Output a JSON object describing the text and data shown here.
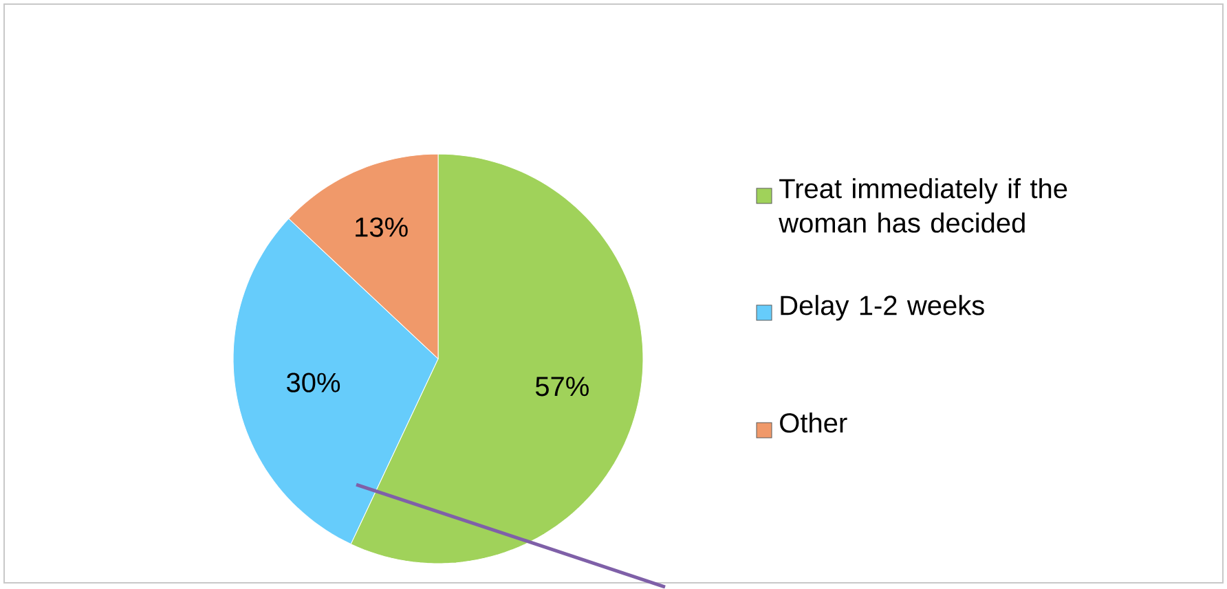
{
  "chart_data": {
    "type": "pie",
    "categories": [
      "Treat immediately if the woman has decided",
      "Delay 1-2 weeks",
      "Other"
    ],
    "values": [
      57,
      30,
      13
    ],
    "colors": [
      "#a0d25a",
      "#66ccfb",
      "#f0996a"
    ],
    "value_labels": [
      "57%",
      "30%",
      "13%"
    ],
    "legend": "right"
  }
}
